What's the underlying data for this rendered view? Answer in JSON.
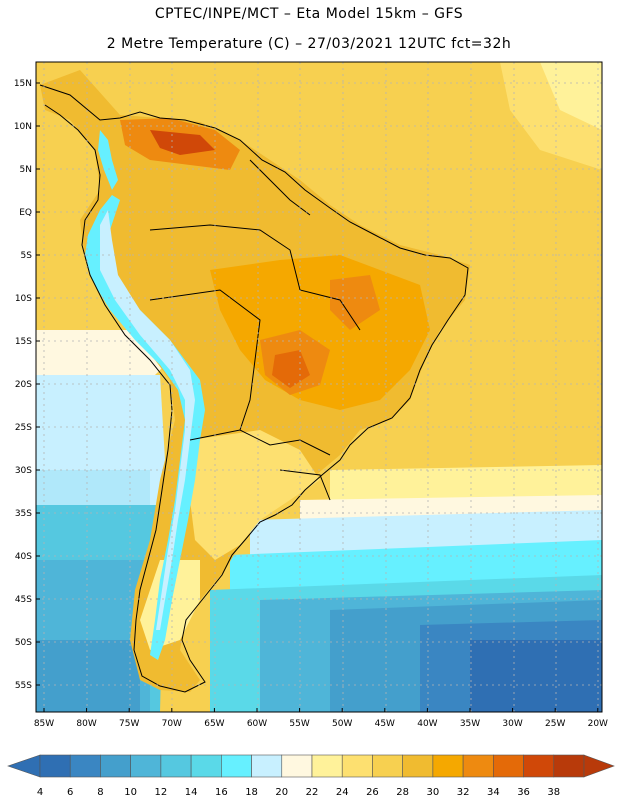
{
  "title_line1": "CPTEC/INPE/MCT –   Eta Model 15km – GFS",
  "title_line2": "2 Metre Temperature (C) – 27/03/2021 12UTC fct=32h",
  "lat_labels": [
    "15N",
    "10N",
    "5N",
    "EQ",
    "5S",
    "10S",
    "15S",
    "20S",
    "25S",
    "30S",
    "35S",
    "40S",
    "45S",
    "50S",
    "55S"
  ],
  "lon_labels": [
    "85W",
    "80W",
    "75W",
    "70W",
    "65W",
    "60W",
    "55W",
    "50W",
    "45W",
    "40W",
    "35W",
    "30W",
    "25W",
    "20W"
  ],
  "colorbar": {
    "labels": [
      "4",
      "6",
      "8",
      "10",
      "12",
      "14",
      "16",
      "18",
      "20",
      "22",
      "24",
      "26",
      "28",
      "30",
      "32",
      "34",
      "36",
      "38"
    ],
    "colors": [
      "#2f6fb3",
      "#3a86c2",
      "#449fcc",
      "#4fb5d8",
      "#55c8e0",
      "#5ad9e8",
      "#66f0ff",
      "#c8f0ff",
      "#fff8e0",
      "#fff29a",
      "#fde070",
      "#f7d050",
      "#f0bb30",
      "#f5a800",
      "#ee8a10",
      "#e46a08",
      "#d04808",
      "#b83a0a"
    ]
  }
}
